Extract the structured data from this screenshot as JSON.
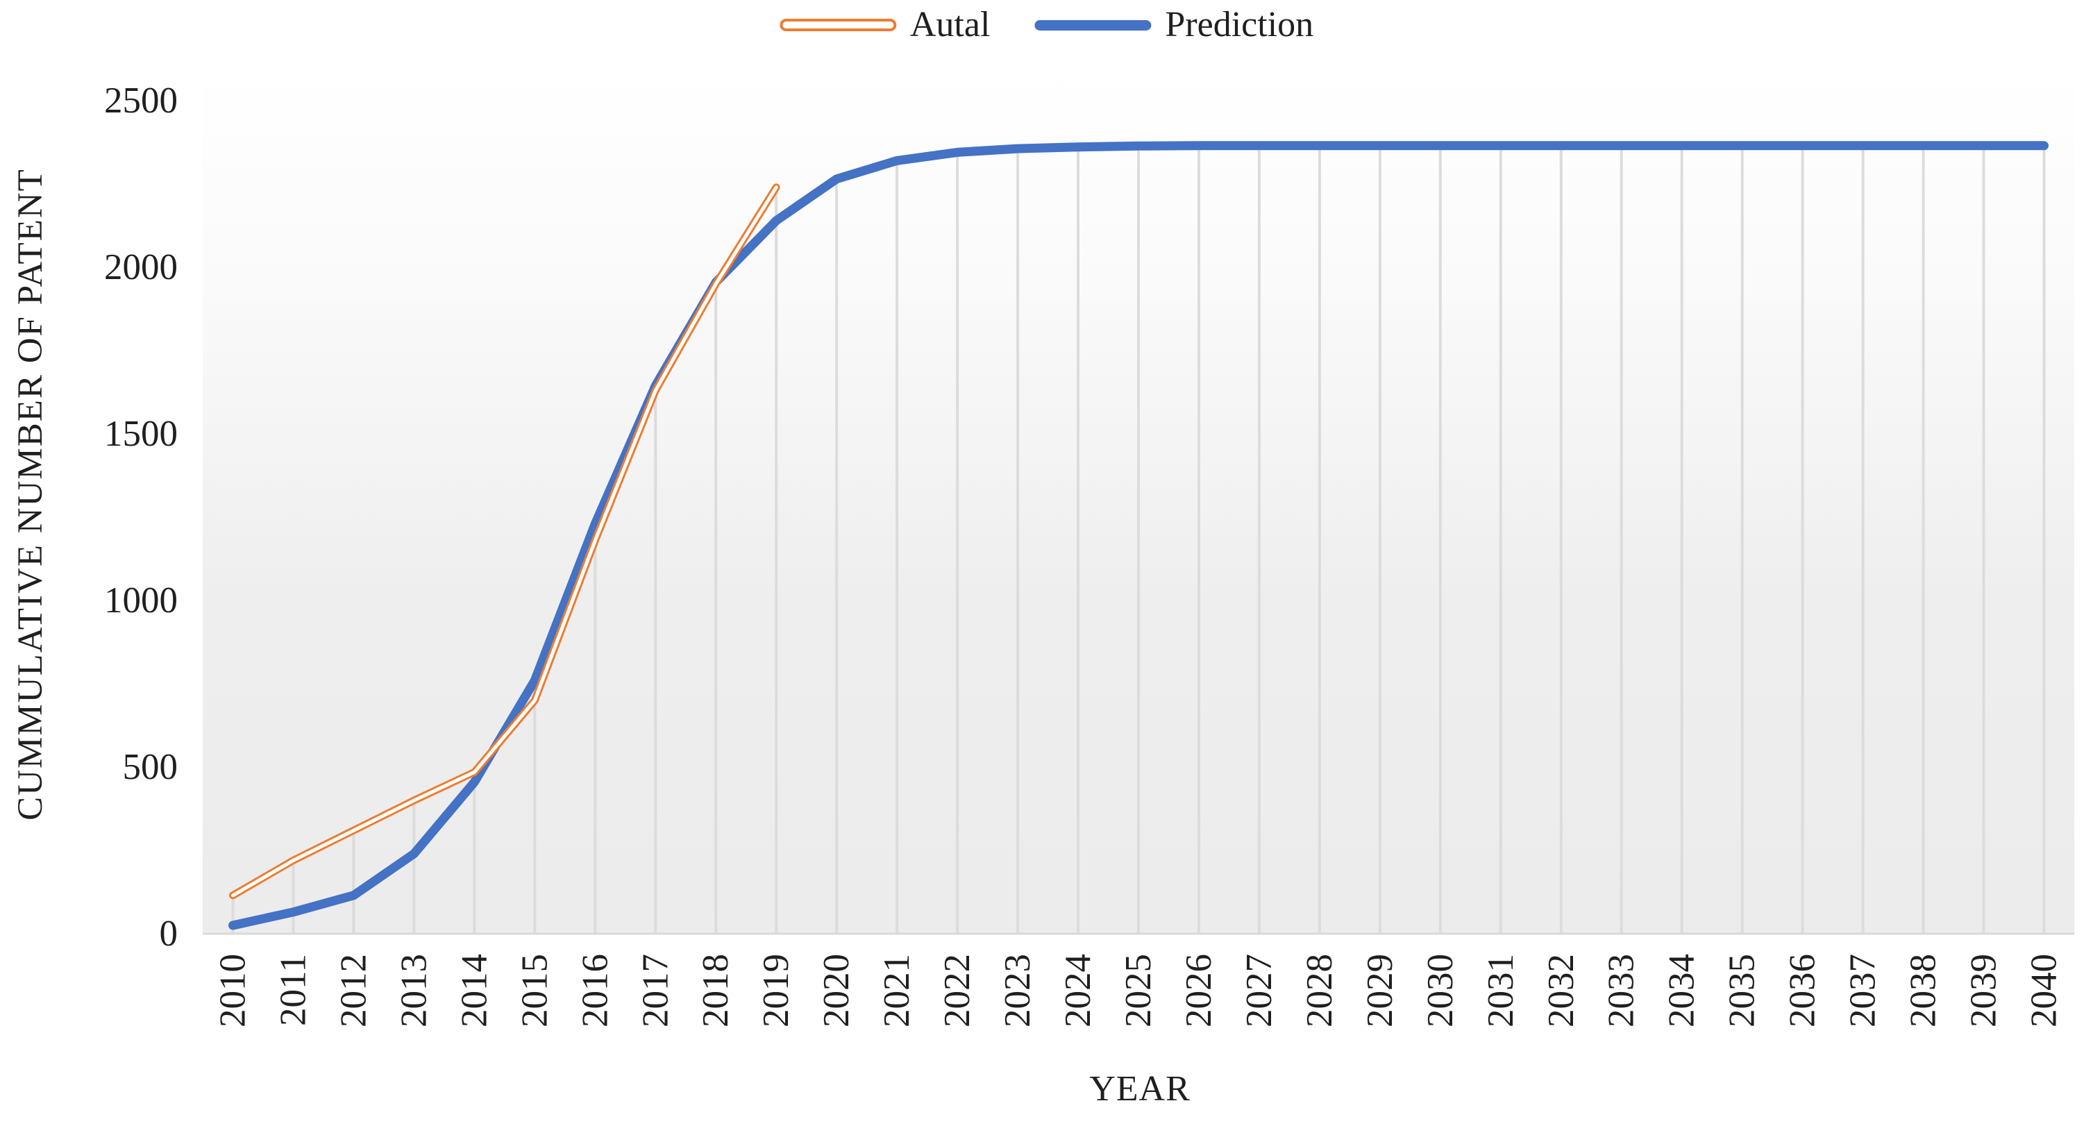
{
  "chart_data": {
    "type": "line",
    "title": "",
    "xlabel": "YEAR",
    "ylabel": "CUMMULATIVE NUMBER OF PATENT",
    "categories": [
      "2010",
      "2011",
      "2012",
      "2013",
      "2014",
      "2015",
      "2016",
      "2017",
      "2018",
      "2019",
      "2020",
      "2021",
      "2022",
      "2023",
      "2024",
      "2025",
      "2026",
      "2027",
      "2028",
      "2029",
      "2030",
      "2031",
      "2032",
      "2033",
      "2034",
      "2035",
      "2036",
      "2037",
      "2038",
      "2039",
      "2040"
    ],
    "series": [
      {
        "name": "Autal",
        "color": "#ED7D31",
        "style": "outline",
        "values": [
          115,
          220,
          310,
          400,
          485,
          700,
          1180,
          1630,
          1950,
          2240
        ]
      },
      {
        "name": "Prediction",
        "color": "#4472C4",
        "style": "solid",
        "values": [
          25,
          65,
          115,
          240,
          455,
          760,
          1230,
          1645,
          1955,
          2140,
          2265,
          2320,
          2345,
          2356,
          2361,
          2364,
          2365,
          2365,
          2365,
          2365,
          2365,
          2365,
          2365,
          2365,
          2365,
          2365,
          2365,
          2365,
          2365,
          2365,
          2365
        ]
      }
    ],
    "ylim": [
      0,
      2500
    ],
    "yticks": [
      0,
      500,
      1000,
      1500,
      2000,
      2500
    ],
    "grid": "vertical-drop-lines",
    "legend_position": "top-center",
    "plot_bg_top": "#FFFFFF",
    "plot_bg_bottom": "#ECECEC",
    "dropline_color": "#DCDCDC",
    "axisline_color": "#D9D9D9",
    "text_color": "#1F1F1F"
  }
}
